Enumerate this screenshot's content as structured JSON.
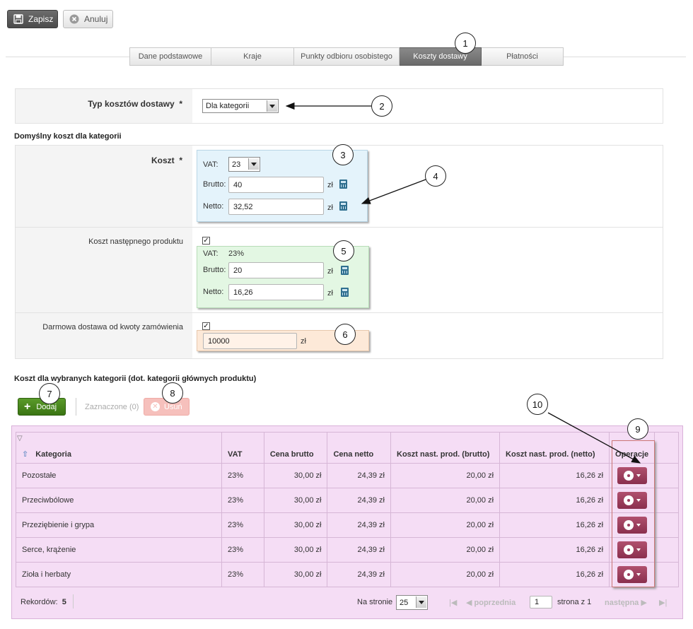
{
  "toolbar": {
    "save_label": "Zapisz",
    "cancel_label": "Anuluj"
  },
  "tabs": [
    {
      "label": "Dane podstawowe",
      "active": false
    },
    {
      "label": "Kraje",
      "active": false
    },
    {
      "label": "Punkty odbioru osobistego",
      "active": false
    },
    {
      "label": "Koszty dostawy",
      "active": true
    },
    {
      "label": "Płatności",
      "active": false
    }
  ],
  "form": {
    "type_label": "Typ kosztów dostawy",
    "required": "*",
    "type_value": "Dla kategorii",
    "default_section": "Domyślny koszt dla kategorii",
    "cost_label": "Koszt",
    "vat_label": "VAT:",
    "vat_value": "23",
    "brutto_label": "Brutto:",
    "brutto_value": "40",
    "netto_label": "Netto:",
    "netto_value": "32,52",
    "currency": "zł",
    "next_label": "Koszt następnego produktu",
    "next_checked": "✓",
    "next_vat_label": "VAT:",
    "next_vat_value": "23%",
    "next_brutto_value": "20",
    "next_netto_value": "16,26",
    "free_label": "Darmowa dostawa od kwoty zamówienia",
    "free_checked": "✓",
    "free_value": "10000"
  },
  "selected": {
    "section": "Koszt dla wybranych kategorii (dot. kategorii głównych produktu)",
    "add_label": "Dodaj",
    "marked_label": "Zaznaczone (0)",
    "delete_label": "Usuń"
  },
  "grid": {
    "columns": [
      "Kategoria",
      "VAT",
      "Cena brutto",
      "Cena netto",
      "Koszt nast. prod. (brutto)",
      "Koszt nast. prod. (netto)",
      "Operacje"
    ],
    "rows": [
      [
        "Pozostałe",
        "23%",
        "30,00 zł",
        "24,39 zł",
        "20,00 zł",
        "16,26 zł"
      ],
      [
        "Przeciwbólowe",
        "23%",
        "30,00 zł",
        "24,39 zł",
        "20,00 zł",
        "16,26 zł"
      ],
      [
        "Przeziębienie i grypa",
        "23%",
        "30,00 zł",
        "24,39 zł",
        "20,00 zł",
        "16,26 zł"
      ],
      [
        "Serce, krążenie",
        "23%",
        "30,00 zł",
        "24,39 zł",
        "20,00 zł",
        "16,26 zł"
      ],
      [
        "Zioła i herbaty",
        "23%",
        "30,00 zł",
        "24,39 zł",
        "20,00 zł",
        "16,26 zł"
      ]
    ],
    "records_label": "Rekordów:",
    "records_value": "5",
    "per_page_label": "Na stronie",
    "per_page_value": "25",
    "prev_label": "poprzednia",
    "page_value": "1",
    "page_of": "strona z 1",
    "next_label": "następna"
  },
  "callouts": [
    "1",
    "2",
    "3",
    "4",
    "5",
    "6",
    "7",
    "8",
    "9",
    "10"
  ],
  "colors": {
    "active_tab": "#6a6a6a",
    "add_button": "#3f7f1a",
    "ops_button": "#8a2f4e",
    "grid_bg": "#f5ddf5"
  }
}
